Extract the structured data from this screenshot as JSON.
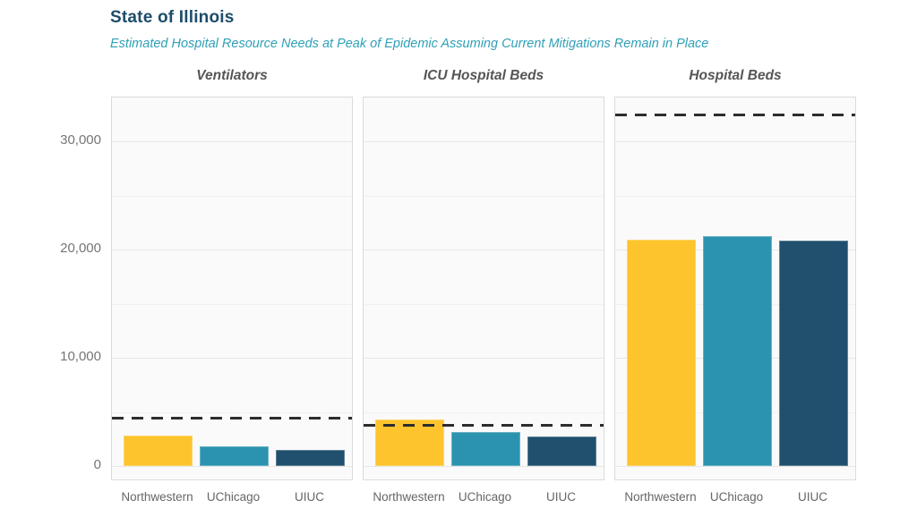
{
  "header": {
    "title": "State of Illinois",
    "subtitle": "Estimated Hospital Resource Needs at Peak of Epidemic Assuming Current Mitigations Remain in Place"
  },
  "colors": {
    "title": "#1D4D6A",
    "subtitle": "#2FA0B8",
    "panel_background": "#FAFAFA",
    "panel_border": "#DBDBDB",
    "dashed_line": "#2D2D2D",
    "axis_text": "#757575"
  },
  "chart_data": {
    "type": "bar",
    "title": "State of Illinois",
    "subtitle": "Estimated Hospital Resource Needs at Peak of Epidemic Assuming Current Mitigations Remain in Place",
    "categories": [
      "Northwestern",
      "UChicago",
      "UIUC"
    ],
    "series_colors": {
      "Northwestern": "#FDC42D",
      "UChicago": "#2B93AF",
      "UIUC": "#20506E"
    },
    "facets": [
      {
        "label": "Ventilators",
        "values": [
          2800,
          1800,
          1500
        ],
        "dashed_line_value": 4500
      },
      {
        "label": "ICU Hospital Beds",
        "values": [
          4300,
          3150,
          2700
        ],
        "dashed_line_value": 3800
      },
      {
        "label": "Hospital Beds",
        "values": [
          20900,
          21200,
          20800
        ],
        "dashed_line_value": 32500
      }
    ],
    "ylabel": "",
    "xlabel": "",
    "ylim": [
      0,
      34000
    ],
    "y_ticks": [
      0,
      10000,
      20000,
      30000
    ],
    "y_minor_gridlines": [
      5000,
      15000,
      25000
    ],
    "grid": "horizontal only",
    "legend_position": "none",
    "bar_style": "grouped facets, dashed horizontal reference line per facet"
  }
}
